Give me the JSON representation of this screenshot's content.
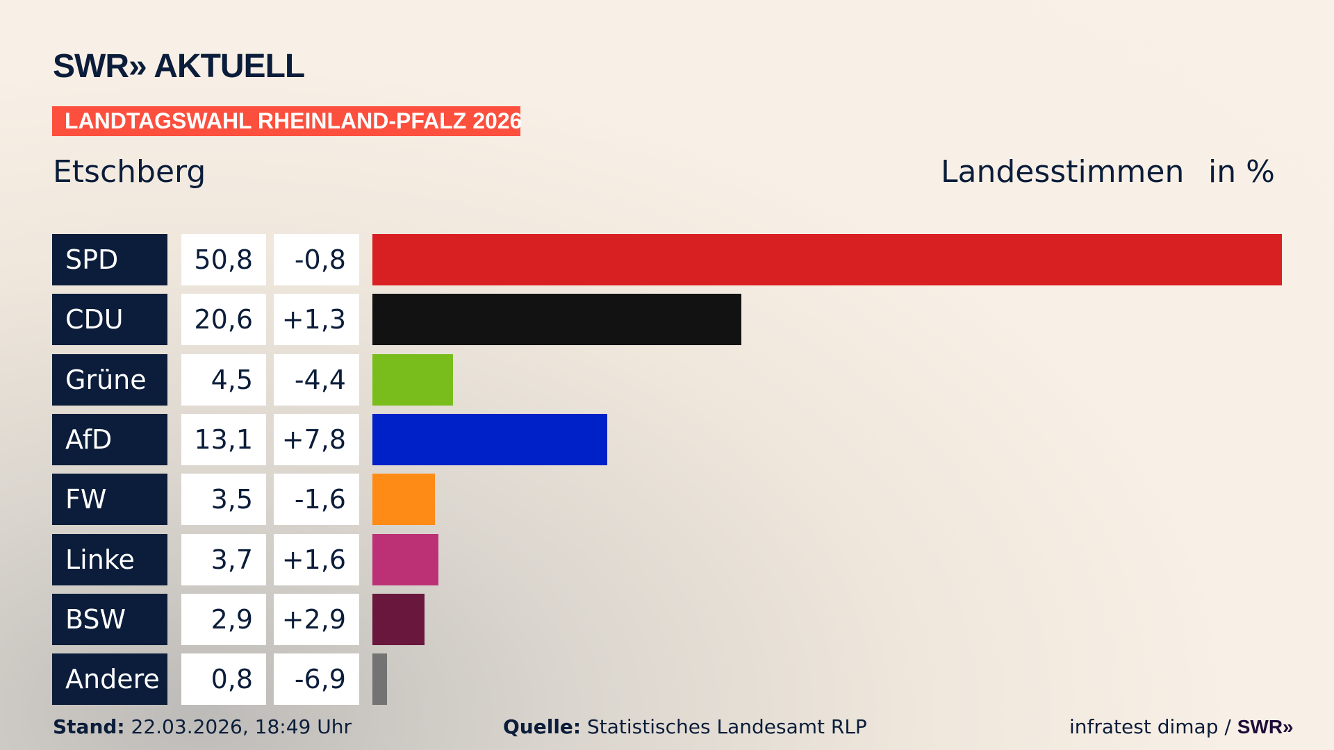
{
  "header": {
    "logo": "SWR» AKTUELL",
    "banner": "LANDTAGSWAHL RHEINLAND-PFALZ 2026",
    "region": "Etschberg",
    "vote_type": "Landesstimmen",
    "unit": "in %"
  },
  "chart_data": {
    "type": "bar",
    "orientation": "horizontal",
    "categories": [
      "SPD",
      "CDU",
      "Grüne",
      "AfD",
      "FW",
      "Linke",
      "BSW",
      "Andere"
    ],
    "values": [
      50.8,
      20.6,
      4.5,
      13.1,
      3.5,
      3.7,
      2.9,
      0.8
    ],
    "value_labels": [
      "50,8",
      "20,6",
      "4,5",
      "13,1",
      "3,5",
      "3,7",
      "2,9",
      "0,8"
    ],
    "diff_labels": [
      "-0,8",
      "+1,3",
      "-4,4",
      "+7,8",
      "-1,6",
      "+1,6",
      "+2,9",
      "-6,9"
    ],
    "colors": [
      "#d81f21",
      "#121212",
      "#79bd1c",
      "#0021c8",
      "#ff8b17",
      "#bc3175",
      "#69173d",
      "#737373"
    ],
    "ylabel": "Landesstimmen in %",
    "grid": false
  },
  "footer": {
    "stand_label": "Stand:",
    "stand_value": "22.03.2026, 18:49 Uhr",
    "source_label": "Quelle:",
    "source_value": "Statistisches Landesamt RLP",
    "credit": "infratest dimap /",
    "credit_logo": "SWR»"
  }
}
